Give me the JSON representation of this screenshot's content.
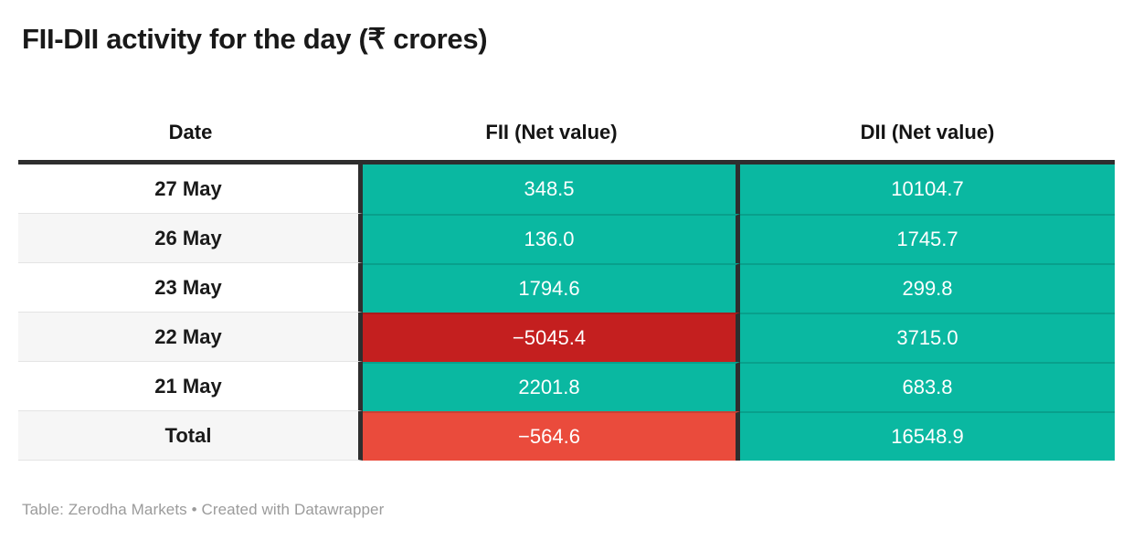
{
  "title": "FII-DII activity for the day (₹ crores)",
  "footer": "Table: Zerodha Markets • Created with Datawrapper",
  "colors": {
    "positive": "#0ab8a1",
    "negative": "#c41f1f",
    "negative_total": "#ea4b3c",
    "header_border": "#2e2e2e",
    "row_alt": "#f6f6f6",
    "footer_text": "#9b9b9b"
  },
  "table": {
    "columns": [
      "Date",
      "FII (Net value)",
      "DII (Net value)"
    ],
    "rows": [
      {
        "date": "27 May",
        "fii": {
          "value": "348.5",
          "state": "positive"
        },
        "dii": {
          "value": "10104.7",
          "state": "positive"
        }
      },
      {
        "date": "26 May",
        "fii": {
          "value": "136.0",
          "state": "positive"
        },
        "dii": {
          "value": "1745.7",
          "state": "positive"
        }
      },
      {
        "date": "23 May",
        "fii": {
          "value": "1794.6",
          "state": "positive"
        },
        "dii": {
          "value": "299.8",
          "state": "positive"
        }
      },
      {
        "date": "22 May",
        "fii": {
          "value": "−5045.4",
          "state": "negative"
        },
        "dii": {
          "value": "3715.0",
          "state": "positive"
        }
      },
      {
        "date": "21 May",
        "fii": {
          "value": "2201.8",
          "state": "positive"
        },
        "dii": {
          "value": "683.8",
          "state": "positive"
        }
      },
      {
        "date": "Total",
        "fii": {
          "value": "−564.6",
          "state": "negative-total"
        },
        "dii": {
          "value": "16548.9",
          "state": "positive"
        }
      }
    ]
  },
  "chart_data": {
    "type": "table",
    "title": "FII-DII activity for the day (₹ crores)",
    "columns": [
      "Date",
      "FII (Net value)",
      "DII (Net value)"
    ],
    "rows": [
      [
        "27 May",
        348.5,
        10104.7
      ],
      [
        "26 May",
        136.0,
        1745.7
      ],
      [
        "23 May",
        1794.6,
        299.8
      ],
      [
        "22 May",
        -5045.4,
        3715.0
      ],
      [
        "21 May",
        2201.8,
        683.8
      ],
      [
        "Total",
        -564.6,
        16548.9
      ]
    ],
    "totals": {
      "fii_net": -564.6,
      "dii_net": 16548.9
    },
    "cell_color_rule": "positive values teal (#0ab8a1); negative daily value dark red (#c41f1f); negative total lighter red (#ea4b3c)",
    "source": "Table: Zerodha Markets • Created with Datawrapper"
  }
}
